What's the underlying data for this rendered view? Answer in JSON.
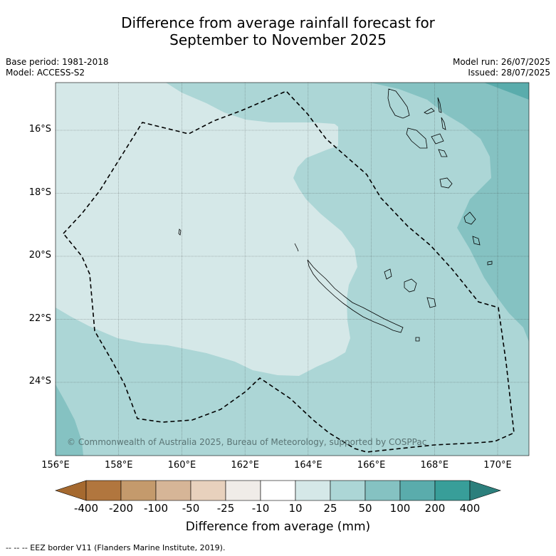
{
  "title_line1": "Difference from average rainfall forecast for",
  "title_line2": "September to November 2025",
  "meta_left": {
    "base_period": "Base period: 1981-2018",
    "model": "Model: ACCESS-S2"
  },
  "meta_right": {
    "model_run": "Model run: 26/07/2025",
    "issued": "Issued: 28/07/2025"
  },
  "copyright": "© Commonwealth of Australia 2025, Bureau of Meteorology, supported by COSPPac",
  "lat_labels": [
    "16°S",
    "18°S",
    "20°S",
    "22°S",
    "24°S"
  ],
  "lon_labels": [
    "156°E",
    "158°E",
    "160°E",
    "162°E",
    "164°E",
    "166°E",
    "168°E",
    "170°E"
  ],
  "colorbar": {
    "labels": [
      "-400",
      "-200",
      "-100",
      "-50",
      "-25",
      "-10",
      "10",
      "25",
      "50",
      "100",
      "200",
      "400"
    ],
    "colors": [
      "#a5692f",
      "#b1763e",
      "#c49a6c",
      "#d6b597",
      "#e8d1bd",
      "#f0ece8",
      "#ffffff",
      "#d5e8e8",
      "#acd6d6",
      "#85c2c2",
      "#5aacac",
      "#389e99",
      "#2c7f7c"
    ],
    "title": "Difference from average (mm)"
  },
  "footnote": "-- -- -- EEZ border V11 (Flanders Marine Institute, 2019)."
}
